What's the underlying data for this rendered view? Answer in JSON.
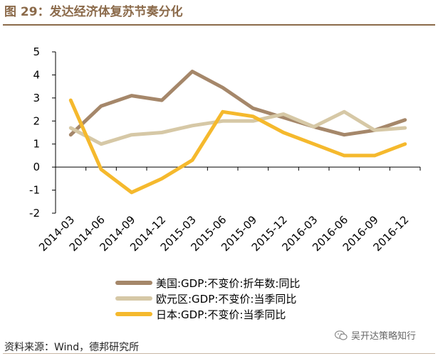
{
  "header": {
    "title": "图 29：发达经济体复苏节奏分化"
  },
  "chart_data": {
    "type": "line",
    "title": "图 29：发达经济体复苏节奏分化",
    "xlabel": "",
    "ylabel": "",
    "categories": [
      "2014-03",
      "2014-06",
      "2014-09",
      "2014-12",
      "2015-03",
      "2015-06",
      "2015-09",
      "2015-12",
      "2016-03",
      "2016-06",
      "2016-09",
      "2016-12"
    ],
    "ylim": [
      -2,
      5
    ],
    "yticks": [
      -2,
      -1,
      0,
      1,
      2,
      3,
      4,
      5
    ],
    "ytick_labels": [
      "-2",
      "-1",
      "0",
      "1",
      "2",
      "3",
      "4",
      "5"
    ],
    "grid": false,
    "legend_position": "bottom-center",
    "series": [
      {
        "name": "美国:GDP:不变价:折年数:同比",
        "color": "#a5876a",
        "values": [
          1.4,
          2.65,
          3.1,
          2.9,
          4.15,
          3.45,
          2.55,
          2.15,
          1.75,
          1.4,
          1.6,
          2.05
        ]
      },
      {
        "name": "欧元区:GDP:不变价:当季同比",
        "color": "#d6c8a6",
        "values": [
          1.7,
          1.0,
          1.4,
          1.5,
          1.8,
          2.0,
          2.0,
          2.3,
          1.75,
          2.4,
          1.6,
          1.7
        ]
      },
      {
        "name": "日本:GDP:不变价:当季同比",
        "color": "#f5b92d",
        "values": [
          2.9,
          -0.1,
          -1.1,
          -0.5,
          0.3,
          2.4,
          2.2,
          1.5,
          1.0,
          0.5,
          0.5,
          1.0
        ]
      }
    ]
  },
  "footer": {
    "source": "资料来源：Wind，德邦研究所",
    "watermark": "吴开达策略知行"
  }
}
